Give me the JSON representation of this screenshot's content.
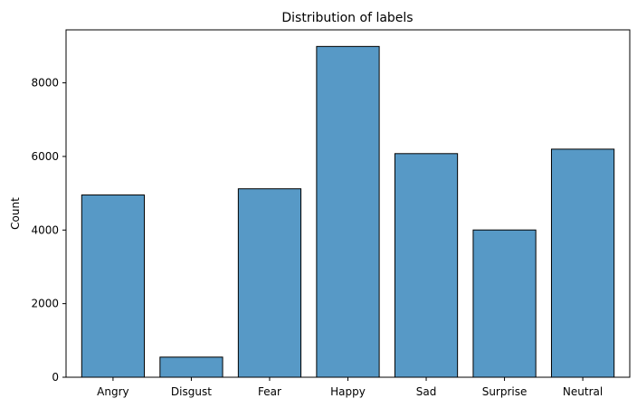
{
  "chart_data": {
    "type": "bar",
    "title": "Distribution of labels",
    "xlabel": "",
    "ylabel": "Count",
    "categories": [
      "Angry",
      "Disgust",
      "Fear",
      "Happy",
      "Sad",
      "Surprise",
      "Neutral"
    ],
    "values": [
      4953,
      547,
      5121,
      8989,
      6077,
      4002,
      6198
    ],
    "ylim": [
      0,
      9440
    ],
    "yticks": [
      0,
      2000,
      4000,
      6000,
      8000
    ],
    "ytick_labels": [
      "0",
      "2000",
      "4000",
      "6000",
      "8000"
    ],
    "grid": false,
    "legend": "none",
    "colors": {
      "bar_fill": "#5799c6",
      "bar_edge": "#000000",
      "axis": "#000000",
      "background": "#ffffff"
    }
  }
}
